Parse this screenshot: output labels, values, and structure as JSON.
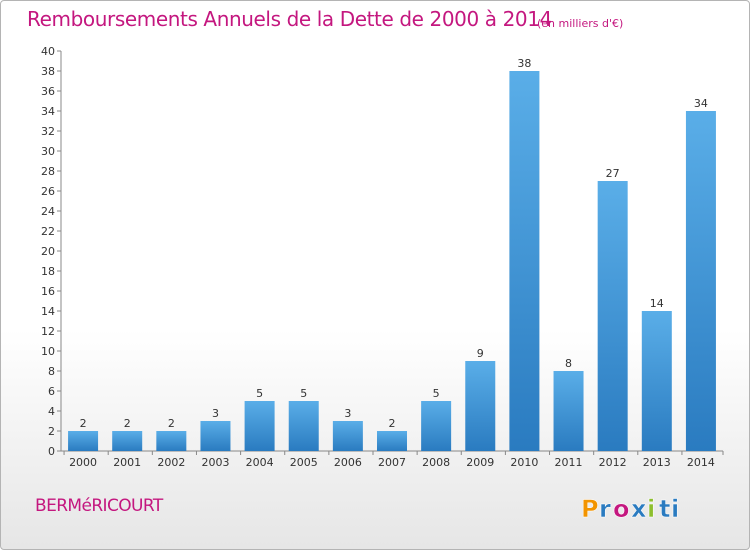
{
  "header": {
    "title": "Remboursements Annuels de la Dette de 2000 à 2014",
    "subtitle": "(en milliers d'€)"
  },
  "footer": {
    "commune": "BERMéRICOURT",
    "logo_text": "Proxiti"
  },
  "colors": {
    "title": "#c4177f",
    "bar_light": "#5aaee8",
    "bar_dark": "#2a7bc0",
    "logo_letters": [
      "#f29400",
      "#2a7bc0",
      "#c4177f",
      "#2a7bc0",
      "#8dbf2e",
      "#2a7bc0",
      "#2a7bc0"
    ]
  },
  "chart_data": {
    "type": "bar",
    "title": "Remboursements Annuels de la Dette de 2000 à 2014",
    "subtitle": "(en milliers d'€)",
    "categories": [
      "2000",
      "2001",
      "2002",
      "2003",
      "2004",
      "2005",
      "2006",
      "2007",
      "2008",
      "2009",
      "2010",
      "2011",
      "2012",
      "2013",
      "2014"
    ],
    "values": [
      2,
      2,
      2,
      3,
      5,
      5,
      3,
      2,
      5,
      9,
      38,
      8,
      27,
      14,
      34
    ],
    "ylim": [
      0,
      40
    ],
    "yticks": [
      0,
      2,
      4,
      6,
      8,
      10,
      12,
      14,
      16,
      18,
      20,
      22,
      24,
      26,
      28,
      30,
      32,
      34,
      36,
      38,
      40
    ],
    "grid": false,
    "xlabel": "",
    "ylabel": ""
  }
}
